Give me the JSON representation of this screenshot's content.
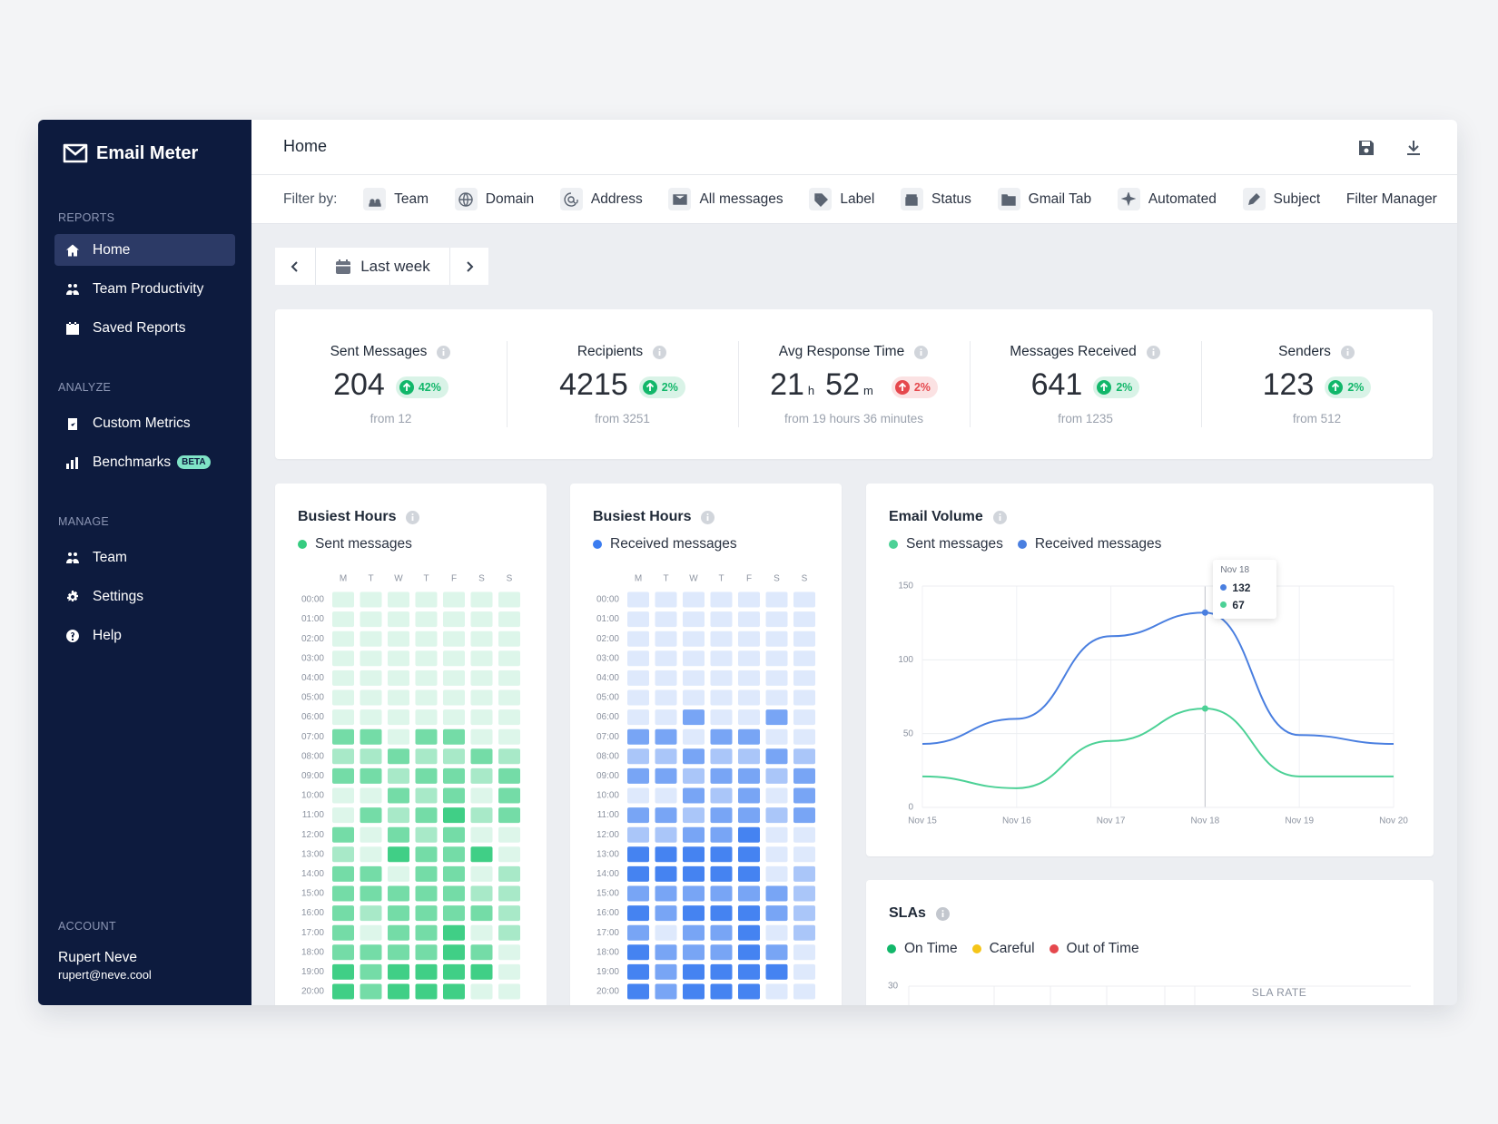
{
  "sidebar": {
    "brand": "Email Meter",
    "sections": [
      {
        "heading": "REPORTS",
        "items": [
          {
            "label": "Home",
            "active": true
          },
          {
            "label": "Team Productivity"
          },
          {
            "label": "Saved Reports"
          }
        ]
      },
      {
        "heading": "ANALYZE",
        "items": [
          {
            "label": "Custom Metrics"
          },
          {
            "label": "Benchmarks",
            "badge": "BETA"
          }
        ]
      },
      {
        "heading": "MANAGE",
        "items": [
          {
            "label": "Team"
          },
          {
            "label": "Settings"
          },
          {
            "label": "Help"
          }
        ]
      }
    ],
    "account": {
      "heading": "ACCOUNT",
      "name": "Rupert Neve",
      "email": "rupert@neve.cool"
    }
  },
  "header": {
    "title": "Home"
  },
  "filters": {
    "label": "Filter by:",
    "items": [
      "Team",
      "Domain",
      "Address",
      "All messages",
      "Label",
      "Status",
      "Gmail Tab",
      "Automated",
      "Subject",
      "Filter Manager"
    ]
  },
  "date_range": "Last week",
  "kpis": [
    {
      "label": "Sent Messages",
      "value": 204,
      "change": "42%",
      "change_color": "#12b76a",
      "from": "from 12"
    },
    {
      "label": "Recipients",
      "value": 4215,
      "change": "2%",
      "change_color": "#12b76a",
      "from": "from 3251"
    },
    {
      "label": "Avg Response Time",
      "value_parts": [
        {
          "value": 21,
          "unit": "h"
        },
        {
          "value": 52,
          "unit": "m"
        }
      ],
      "change": "2%",
      "change_color": "#e5484d",
      "from": "from 19 hours 36 minutes"
    },
    {
      "label": "Messages Received",
      "value": 641,
      "change": "2%",
      "change_color": "#12b76a",
      "from": "from 1235"
    },
    {
      "label": "Senders",
      "value": 123,
      "change": "2%",
      "change_color": "#12b76a",
      "from": "from 512"
    }
  ],
  "chart_data": [
    {
      "type": "heatmap",
      "title": "Busiest Hours",
      "name": "Sent messages",
      "color": "#36cc80",
      "x": [
        "M",
        "T",
        "W",
        "T",
        "F",
        "S",
        "S"
      ],
      "y": [
        "00:00",
        "01:00",
        "02:00",
        "03:00",
        "04:00",
        "05:00",
        "06:00",
        "07:00",
        "08:00",
        "09:00",
        "10:00",
        "11:00",
        "12:00",
        "13:00",
        "14:00",
        "15:00",
        "16:00",
        "17:00",
        "18:00",
        "19:00",
        "20:00"
      ],
      "values": [
        [
          1,
          1,
          1,
          1,
          1,
          1,
          1
        ],
        [
          1,
          1,
          1,
          1,
          1,
          1,
          1
        ],
        [
          1,
          1,
          1,
          1,
          1,
          1,
          1
        ],
        [
          1,
          1,
          1,
          1,
          1,
          1,
          1
        ],
        [
          1,
          1,
          1,
          1,
          1,
          1,
          1
        ],
        [
          1,
          1,
          1,
          1,
          1,
          1,
          1
        ],
        [
          1,
          1,
          1,
          1,
          1,
          1,
          1
        ],
        [
          3,
          3,
          1,
          3,
          3,
          1,
          1
        ],
        [
          2,
          2,
          3,
          2,
          2,
          3,
          2
        ],
        [
          3,
          3,
          2,
          3,
          3,
          2,
          3
        ],
        [
          1,
          1,
          3,
          2,
          3,
          1,
          3
        ],
        [
          1,
          3,
          2,
          3,
          4,
          2,
          3
        ],
        [
          3,
          1,
          3,
          2,
          3,
          1,
          1
        ],
        [
          2,
          1,
          4,
          3,
          3,
          4,
          1
        ],
        [
          3,
          3,
          1,
          3,
          3,
          1,
          2
        ],
        [
          3,
          3,
          3,
          3,
          3,
          2,
          2
        ],
        [
          3,
          2,
          3,
          3,
          3,
          3,
          2
        ],
        [
          3,
          1,
          3,
          3,
          4,
          1,
          2
        ],
        [
          3,
          3,
          3,
          3,
          4,
          3,
          1
        ],
        [
          4,
          3,
          4,
          4,
          4,
          4,
          1
        ],
        [
          4,
          3,
          4,
          4,
          4,
          1,
          1
        ]
      ]
    },
    {
      "type": "heatmap",
      "title": "Busiest Hours",
      "name": "Received messages",
      "color": "#3b7cf0",
      "x": [
        "M",
        "T",
        "W",
        "T",
        "F",
        "S",
        "S"
      ],
      "y": [
        "00:00",
        "01:00",
        "02:00",
        "03:00",
        "04:00",
        "05:00",
        "06:00",
        "07:00",
        "08:00",
        "09:00",
        "10:00",
        "11:00",
        "12:00",
        "13:00",
        "14:00",
        "15:00",
        "16:00",
        "17:00",
        "18:00",
        "19:00",
        "20:00"
      ],
      "values": [
        [
          1,
          1,
          1,
          1,
          1,
          1,
          1
        ],
        [
          1,
          1,
          1,
          1,
          1,
          1,
          1
        ],
        [
          1,
          1,
          1,
          1,
          1,
          1,
          1
        ],
        [
          1,
          1,
          1,
          1,
          1,
          1,
          1
        ],
        [
          1,
          1,
          1,
          1,
          1,
          1,
          1
        ],
        [
          1,
          1,
          1,
          1,
          1,
          1,
          1
        ],
        [
          1,
          1,
          3,
          1,
          1,
          3,
          1
        ],
        [
          3,
          3,
          1,
          3,
          3,
          1,
          1
        ],
        [
          2,
          2,
          3,
          2,
          2,
          3,
          2
        ],
        [
          3,
          3,
          2,
          3,
          3,
          2,
          3
        ],
        [
          1,
          1,
          3,
          2,
          3,
          1,
          3
        ],
        [
          3,
          3,
          2,
          3,
          3,
          2,
          3
        ],
        [
          2,
          2,
          3,
          3,
          4,
          1,
          1
        ],
        [
          4,
          4,
          4,
          4,
          4,
          1,
          1
        ],
        [
          4,
          4,
          4,
          4,
          4,
          1,
          2
        ],
        [
          3,
          3,
          3,
          3,
          3,
          3,
          2
        ],
        [
          4,
          3,
          4,
          4,
          4,
          3,
          2
        ],
        [
          3,
          1,
          3,
          3,
          4,
          1,
          2
        ],
        [
          4,
          3,
          3,
          3,
          4,
          3,
          1
        ],
        [
          4,
          3,
          4,
          4,
          4,
          4,
          1
        ],
        [
          4,
          3,
          4,
          4,
          4,
          1,
          1
        ]
      ]
    },
    {
      "type": "line",
      "title": "Email Volume",
      "categories": [
        "Nov 15",
        "Nov 16",
        "Nov 17",
        "Nov 18",
        "Nov 19",
        "Nov 20"
      ],
      "series": [
        {
          "name": "Sent messages",
          "color": "#4cd196",
          "values": [
            21,
            13,
            45,
            67,
            21,
            21
          ]
        },
        {
          "name": "Received messages",
          "color": "#4a7fe0",
          "values": [
            43,
            60,
            116,
            132,
            49,
            43
          ]
        }
      ],
      "ylim": [
        0,
        150
      ],
      "yticks": [
        0,
        50,
        100,
        150
      ],
      "grid": true,
      "tooltip_index": 3
    },
    {
      "type": "bar",
      "title": "SLAs",
      "series": [
        {
          "name": "On Time",
          "color": "#12b76a"
        },
        {
          "name": "Careful",
          "color": "#f5c518"
        },
        {
          "name": "Out of Time",
          "color": "#e5484d"
        }
      ],
      "yticks": [
        30
      ],
      "annotation": "SLA RATE"
    }
  ]
}
